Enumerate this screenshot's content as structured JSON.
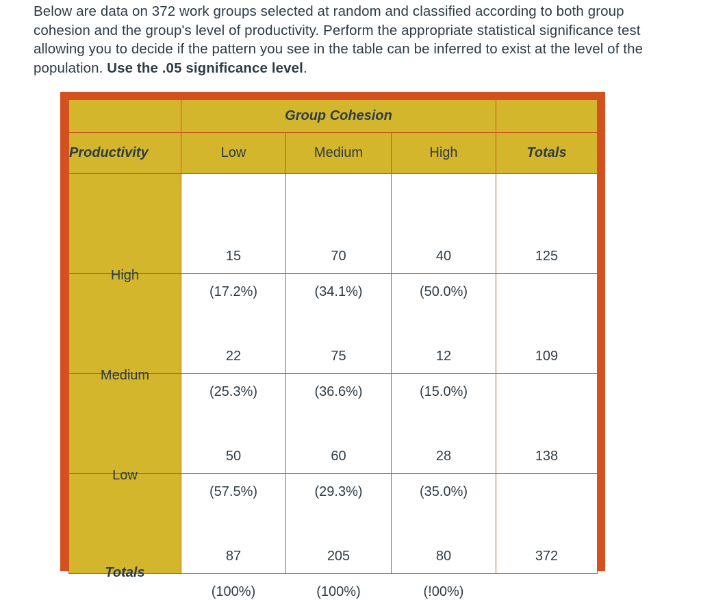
{
  "intro": {
    "text": "Below are data on 372 work groups selected at random and classified according to both group cohesion and the group's level of productivity.  Perform the appropriate statistical significance test allowing you to decide if the pattern you see in the table can be inferred to exist at the level of the population. ",
    "emphasis": "Use the .05 significance level",
    "ending": "."
  },
  "table": {
    "group_title": "Group Cohesion",
    "row_var_label": "Productivity",
    "columns": [
      "Low",
      "Medium",
      "High"
    ],
    "totals_label": "Totals",
    "rows": [
      {
        "label": "High",
        "cells": [
          {
            "count": "15",
            "pct": "(17.2%)"
          },
          {
            "count": "70",
            "pct": "(34.1%)"
          },
          {
            "count": "40",
            "pct": "(50.0%)"
          }
        ],
        "total": "125"
      },
      {
        "label": "Medium",
        "cells": [
          {
            "count": "22",
            "pct": "(25.3%)"
          },
          {
            "count": "75",
            "pct": "(36.6%)"
          },
          {
            "count": "12",
            "pct": "(15.0%)"
          }
        ],
        "total": "109"
      },
      {
        "label": "Low",
        "cells": [
          {
            "count": "50",
            "pct": "(57.5%)"
          },
          {
            "count": "60",
            "pct": "(29.3%)"
          },
          {
            "count": "28",
            "pct": "(35.0%)"
          }
        ],
        "total": "138"
      }
    ],
    "totals_row": {
      "label": "Totals",
      "cells": [
        {
          "count": "87",
          "pct": "(100%)"
        },
        {
          "count": "205",
          "pct": "(100%)"
        },
        {
          "count": "80",
          "pct": "(!00%)"
        }
      ],
      "total": "372"
    }
  },
  "colors": {
    "header_gold": "#d4b62c",
    "frame_orange": "#d2511e",
    "text": "#2d3b45"
  }
}
